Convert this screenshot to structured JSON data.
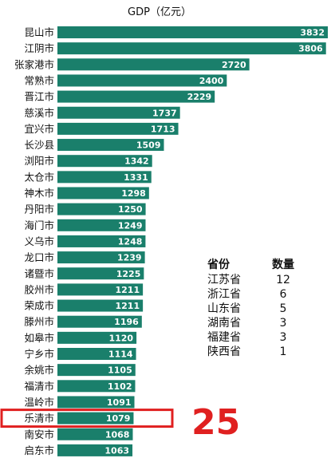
{
  "chart_data": {
    "type": "bar",
    "orientation": "horizontal",
    "title": "GDP（亿元）",
    "categories": [
      "昆山市",
      "江阴市",
      "张家港市",
      "常熟市",
      "晋江市",
      "慈溪市",
      "宜兴市",
      "长沙县",
      "浏阳市",
      "太仓市",
      "神木市",
      "丹阳市",
      "海门市",
      "义乌市",
      "龙口市",
      "诸暨市",
      "胶州市",
      "荣成市",
      "滕州市",
      "如皋市",
      "宁乡市",
      "余姚市",
      "福清市",
      "温岭市",
      "乐清市",
      "南安市",
      "启东市"
    ],
    "values": [
      3832,
      3806,
      2720,
      2400,
      2229,
      1737,
      1713,
      1509,
      1342,
      1331,
      1298,
      1250,
      1249,
      1248,
      1239,
      1225,
      1211,
      1211,
      1196,
      1120,
      1114,
      1105,
      1102,
      1091,
      1079,
      1068,
      1063
    ],
    "xlim": [
      0,
      3832
    ],
    "bar_color": "#1a7f6b",
    "highlight": {
      "category": "乐清市",
      "label": "25",
      "color": "#e02020"
    }
  },
  "summary_table": {
    "headers": [
      "省份",
      "数量"
    ],
    "rows": [
      [
        "江苏省",
        "12"
      ],
      [
        "浙江省",
        "6"
      ],
      [
        "山东省",
        "5"
      ],
      [
        "湖南省",
        "3"
      ],
      [
        "福建省",
        "3"
      ],
      [
        "陕西省",
        "1"
      ]
    ]
  }
}
